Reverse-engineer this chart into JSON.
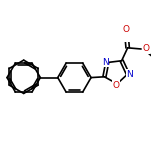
{
  "bg_color": "#ffffff",
  "bond_color": "#000000",
  "N_color": "#0000cc",
  "O_color": "#cc0000",
  "bond_lw": 1.2,
  "dbo": 0.012,
  "font_size": 6.5,
  "fig_w": 1.52,
  "fig_h": 1.52,
  "dpi": 100,
  "hex_r": 0.105,
  "pent_r": 0.078,
  "xlim": [
    0.03,
    0.98
  ],
  "ylim": [
    0.3,
    0.73
  ]
}
